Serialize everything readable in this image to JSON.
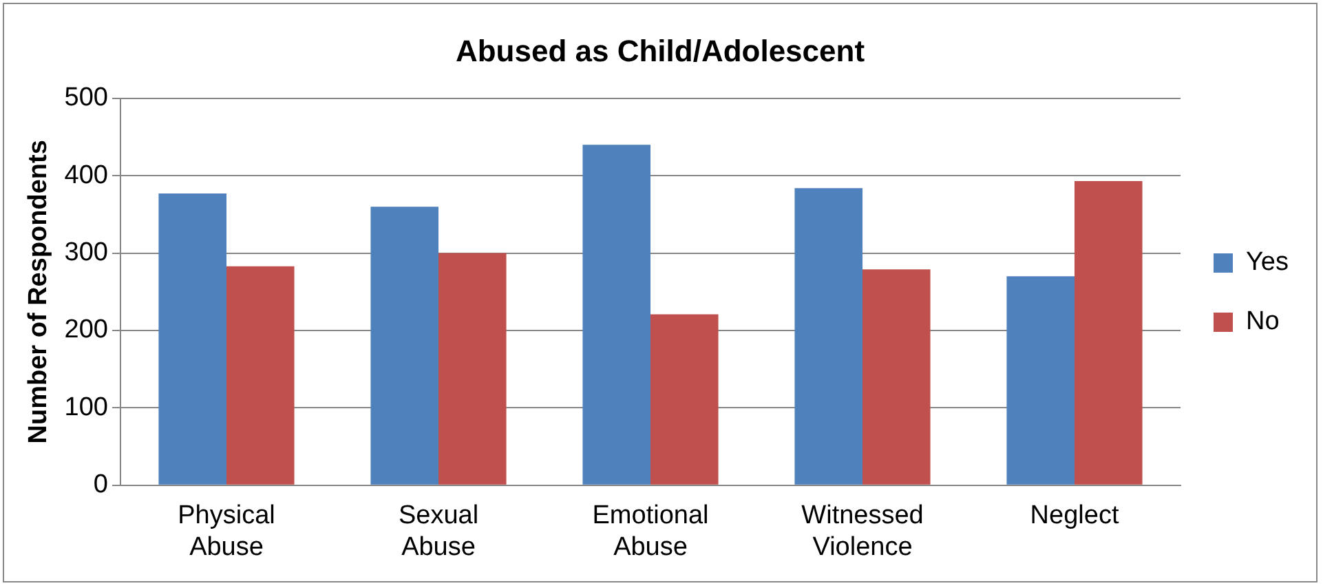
{
  "chart_data": {
    "type": "bar",
    "title": "Abused as Child/Adolescent",
    "ylabel": "Number of Respondents",
    "categories": [
      "Physical Abuse",
      "Sexual Abuse",
      "Emotional Abuse",
      "Witnessed Violence",
      "Neglect"
    ],
    "series": [
      {
        "name": "Yes",
        "color": "#4f81bd",
        "values": [
          377,
          360,
          440,
          384,
          270
        ]
      },
      {
        "name": "No",
        "color": "#c0504d",
        "values": [
          283,
          300,
          221,
          279,
          393
        ]
      }
    ],
    "ylim": [
      0,
      500
    ],
    "yticks": [
      0,
      100,
      200,
      300,
      400,
      500
    ],
    "grid": "y",
    "legend": "right"
  }
}
